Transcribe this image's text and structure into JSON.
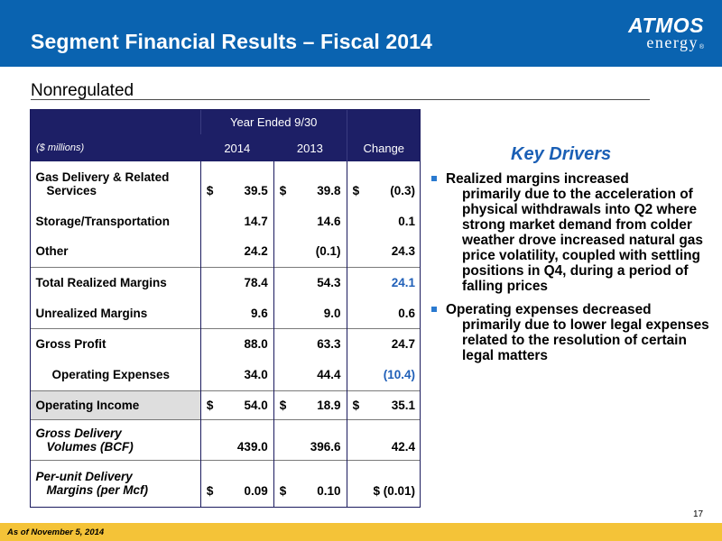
{
  "header": {
    "title": "Segment Financial Results – Fiscal 2014",
    "logo_line1": "ATMOS",
    "logo_line2": "energy",
    "logo_reg": "®"
  },
  "subtitle": "Nonregulated",
  "table": {
    "group_header": "Year Ended 9/30",
    "units_label": "($ millions)",
    "col_2014": "2014",
    "col_2013": "2013",
    "col_change": "Change",
    "rows": [
      {
        "label1": "Gas Delivery & Related",
        "label2": "Services",
        "c1": "$",
        "v1": "39.5",
        "c2": "$",
        "v2": "39.8",
        "c3": "$",
        "v3": "(0.3)"
      },
      {
        "label1": "Storage/Transportation",
        "v1": "14.7",
        "v2": "14.6",
        "v3": "0.1"
      },
      {
        "label1": "Other",
        "v1": "24.2",
        "v2": "(0.1)",
        "v3": "24.3"
      },
      {
        "label1": "Total Realized Margins",
        "v1": "78.4",
        "v2": "54.3",
        "v3": "24.1"
      },
      {
        "label1": "Unrealized Margins",
        "v1": "9.6",
        "v2": "9.0",
        "v3": "0.6"
      },
      {
        "label1": "Gross Profit",
        "v1": "88.0",
        "v2": "63.3",
        "v3": "24.7"
      },
      {
        "label1": "Operating Expenses",
        "v1": "34.0",
        "v2": "44.4",
        "v3": "(10.4)"
      },
      {
        "label1": "Operating Income",
        "c1": "$",
        "v1": "54.0",
        "c2": "$",
        "v2": "18.9",
        "c3": "$",
        "v3": "35.1"
      },
      {
        "label1": "Gross Delivery",
        "label2": "Volumes (BCF)",
        "v1": "439.0",
        "v2": "396.6",
        "v3": "42.4"
      },
      {
        "label1": "Per-unit Delivery",
        "label2": "Margins (per Mcf)",
        "c1": "$",
        "v1": "0.09",
        "c2": "$",
        "v2": "0.10",
        "v3": "$ (0.01)"
      }
    ]
  },
  "key_drivers": {
    "title": "Key Drivers",
    "bullets": [
      {
        "first": "Realized margins increased",
        "rest": "primarily due to the acceleration of physical withdrawals into Q2 where strong market demand from colder weather drove increased natural gas price volatility, coupled with settling positions in Q4, during a period of falling prices"
      },
      {
        "first": "Operating expenses decreased",
        "rest": "primarily due to lower legal expenses related to the resolution of certain legal matters"
      }
    ]
  },
  "page_number": "17",
  "footer": "As of November 5, 2014",
  "colors": {
    "header_blue": "#0a63b0",
    "table_header": "#1d1f66",
    "accent_blue": "#1f5fb8",
    "footer_gold": "#f4c338"
  }
}
